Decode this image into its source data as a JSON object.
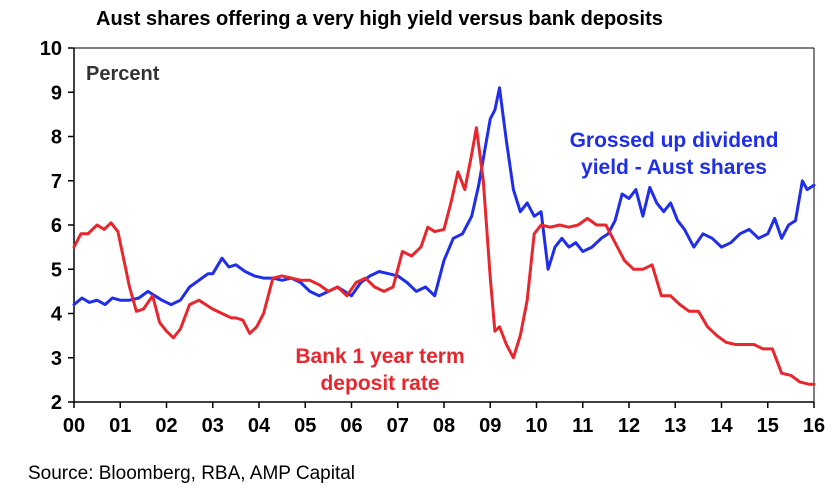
{
  "title": "Aust shares offering a very high yield versus bank deposits",
  "source": "Source: Bloomberg, RBA, AMP Capital",
  "chart_data": {
    "type": "line",
    "title": "Aust shares offering a very high yield versus bank deposits",
    "ylabel": "Percent",
    "xlabel": "",
    "ylim": [
      2,
      10
    ],
    "xlim": [
      2000,
      2016
    ],
    "yticks": [
      2,
      3,
      4,
      5,
      6,
      7,
      8,
      9,
      10
    ],
    "xticks": [
      "00",
      "01",
      "02",
      "03",
      "04",
      "05",
      "06",
      "07",
      "08",
      "09",
      "10",
      "11",
      "12",
      "13",
      "14",
      "15",
      "16"
    ],
    "grid": false,
    "legend": "inline labels",
    "series": [
      {
        "name": "Grossed up dividend yield - Aust shares",
        "color": "#1f2ee8",
        "x": [
          2000.0,
          2000.17,
          2000.33,
          2000.5,
          2000.67,
          2000.83,
          2001.0,
          2001.2,
          2001.4,
          2001.6,
          2001.75,
          2001.9,
          2002.1,
          2002.3,
          2002.5,
          2002.7,
          2002.9,
          2003.0,
          2003.2,
          2003.35,
          2003.5,
          2003.7,
          2003.9,
          2004.1,
          2004.3,
          2004.5,
          2004.7,
          2004.9,
          2005.1,
          2005.3,
          2005.5,
          2005.7,
          2005.85,
          2006.0,
          2006.2,
          2006.4,
          2006.6,
          2006.8,
          2007.0,
          2007.2,
          2007.4,
          2007.6,
          2007.8,
          2008.0,
          2008.2,
          2008.4,
          2008.6,
          2008.75,
          2008.9,
          2009.0,
          2009.1,
          2009.2,
          2009.35,
          2009.5,
          2009.65,
          2009.8,
          2009.95,
          2010.1,
          2010.25,
          2010.4,
          2010.55,
          2010.7,
          2010.85,
          2011.0,
          2011.2,
          2011.4,
          2011.55,
          2011.7,
          2011.85,
          2012.0,
          2012.15,
          2012.3,
          2012.45,
          2012.6,
          2012.75,
          2012.9,
          2013.05,
          2013.2,
          2013.4,
          2013.6,
          2013.8,
          2014.0,
          2014.2,
          2014.4,
          2014.6,
          2014.8,
          2015.0,
          2015.15,
          2015.3,
          2015.45,
          2015.6,
          2015.75,
          2015.85,
          2016.0
        ],
        "values": [
          4.2,
          4.35,
          4.25,
          4.3,
          4.2,
          4.35,
          4.3,
          4.3,
          4.35,
          4.5,
          4.4,
          4.3,
          4.2,
          4.3,
          4.6,
          4.75,
          4.9,
          4.9,
          5.25,
          5.05,
          5.1,
          4.95,
          4.85,
          4.8,
          4.8,
          4.75,
          4.8,
          4.7,
          4.5,
          4.4,
          4.5,
          4.6,
          4.5,
          4.4,
          4.7,
          4.85,
          4.95,
          4.9,
          4.85,
          4.7,
          4.5,
          4.6,
          4.4,
          5.2,
          5.7,
          5.8,
          6.2,
          6.9,
          7.8,
          8.4,
          8.6,
          9.1,
          7.9,
          6.8,
          6.3,
          6.5,
          6.2,
          6.3,
          5.0,
          5.5,
          5.7,
          5.5,
          5.6,
          5.4,
          5.5,
          5.7,
          5.8,
          6.1,
          6.7,
          6.6,
          6.8,
          6.2,
          6.85,
          6.5,
          6.3,
          6.5,
          6.1,
          5.9,
          5.5,
          5.8,
          5.7,
          5.5,
          5.6,
          5.8,
          5.9,
          5.7,
          5.8,
          6.15,
          5.7,
          6.0,
          6.1,
          7.0,
          6.8,
          6.9
        ]
      },
      {
        "name": "Bank 1 year term deposit rate",
        "color": "#e8262d",
        "x": [
          2000.0,
          2000.15,
          2000.3,
          2000.5,
          2000.65,
          2000.8,
          2000.95,
          2001.1,
          2001.2,
          2001.35,
          2001.5,
          2001.7,
          2001.85,
          2002.0,
          2002.15,
          2002.3,
          2002.5,
          2002.7,
          2002.85,
          2003.0,
          2003.2,
          2003.4,
          2003.5,
          2003.65,
          2003.8,
          2003.95,
          2004.1,
          2004.3,
          2004.5,
          2004.7,
          2004.9,
          2005.1,
          2005.3,
          2005.5,
          2005.7,
          2005.9,
          2006.1,
          2006.3,
          2006.5,
          2006.7,
          2006.9,
          2007.1,
          2007.3,
          2007.5,
          2007.65,
          2007.8,
          2008.0,
          2008.15,
          2008.3,
          2008.45,
          2008.6,
          2008.7,
          2008.85,
          2009.0,
          2009.1,
          2009.2,
          2009.35,
          2009.5,
          2009.65,
          2009.8,
          2009.95,
          2010.1,
          2010.3,
          2010.5,
          2010.7,
          2010.9,
          2011.1,
          2011.3,
          2011.5,
          2011.7,
          2011.9,
          2012.1,
          2012.3,
          2012.5,
          2012.7,
          2012.9,
          2013.1,
          2013.3,
          2013.5,
          2013.7,
          2013.9,
          2014.1,
          2014.3,
          2014.5,
          2014.7,
          2014.9,
          2015.1,
          2015.3,
          2015.5,
          2015.7,
          2015.9,
          2016.0
        ],
        "values": [
          5.5,
          5.8,
          5.8,
          6.0,
          5.9,
          6.05,
          5.85,
          5.1,
          4.6,
          4.05,
          4.1,
          4.4,
          3.8,
          3.6,
          3.45,
          3.65,
          4.2,
          4.3,
          4.2,
          4.1,
          4.0,
          3.9,
          3.9,
          3.85,
          3.55,
          3.7,
          4.0,
          4.8,
          4.85,
          4.8,
          4.75,
          4.75,
          4.65,
          4.5,
          4.6,
          4.4,
          4.7,
          4.8,
          4.6,
          4.5,
          4.6,
          5.4,
          5.3,
          5.5,
          5.95,
          5.85,
          5.9,
          6.5,
          7.2,
          6.8,
          7.6,
          8.2,
          7.0,
          4.8,
          3.6,
          3.7,
          3.3,
          3.0,
          3.5,
          4.3,
          5.8,
          6.0,
          5.95,
          6.0,
          5.95,
          6.0,
          6.15,
          6.0,
          6.0,
          5.6,
          5.2,
          5.0,
          5.0,
          5.1,
          4.4,
          4.4,
          4.2,
          4.05,
          4.05,
          3.7,
          3.5,
          3.35,
          3.3,
          3.3,
          3.3,
          3.2,
          3.2,
          2.65,
          2.6,
          2.45,
          2.4,
          2.4
        ]
      }
    ],
    "annotations": [
      {
        "id": "percent",
        "text": "Percent",
        "color": "#333333"
      },
      {
        "id": "blue-label",
        "lines": [
          "Grossed up dividend",
          "yield - Aust shares"
        ],
        "color": "#1f2ee8"
      },
      {
        "id": "red-label",
        "lines": [
          "Bank 1 year term",
          "deposit rate"
        ],
        "color": "#e8262d"
      }
    ]
  }
}
